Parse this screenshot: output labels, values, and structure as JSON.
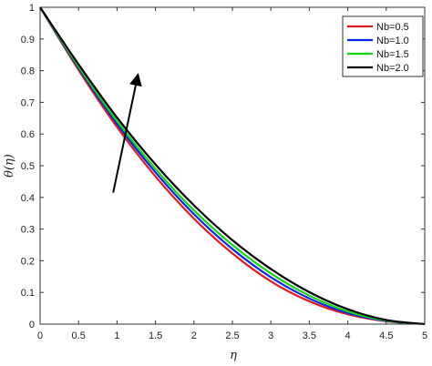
{
  "chart_data": {
    "type": "line",
    "xlabel": "η",
    "ylabel": "θ(η)",
    "xlim": [
      0,
      5
    ],
    "ylim": [
      0,
      1
    ],
    "x_ticks": [
      "0",
      "0.5",
      "1",
      "1.5",
      "2",
      "2.5",
      "3",
      "3.5",
      "4",
      "4.5",
      "5"
    ],
    "y_ticks": [
      "0",
      "0.1",
      "0.2",
      "0.3",
      "0.4",
      "0.5",
      "0.6",
      "0.7",
      "0.8",
      "0.9",
      "1"
    ],
    "grid": false,
    "legend_position": "top-right",
    "x": [
      0,
      0.5,
      1,
      1.5,
      2,
      2.5,
      3,
      3.5,
      4,
      4.5,
      5
    ],
    "series": [
      {
        "name": "Nb=0.5",
        "color": "#e41a1c",
        "values": [
          1.0,
          0.802,
          0.622,
          0.466,
          0.333,
          0.223,
          0.135,
          0.072,
          0.031,
          0.009,
          0.0
        ]
      },
      {
        "name": "Nb=1.0",
        "color": "#0a24e8",
        "values": [
          1.0,
          0.808,
          0.632,
          0.479,
          0.347,
          0.237,
          0.148,
          0.081,
          0.035,
          0.01,
          0.0
        ]
      },
      {
        "name": "Nb=1.5",
        "color": "#11d611",
        "values": [
          1.0,
          0.813,
          0.641,
          0.49,
          0.359,
          0.25,
          0.16,
          0.09,
          0.04,
          0.011,
          0.0
        ]
      },
      {
        "name": "Nb=2.0",
        "color": "#000000",
        "values": [
          1.0,
          0.82,
          0.652,
          0.504,
          0.375,
          0.265,
          0.174,
          0.101,
          0.047,
          0.013,
          0.0
        ]
      }
    ],
    "annotations": [
      {
        "type": "arrow",
        "from": [
          0.95,
          0.415
        ],
        "to": [
          1.27,
          0.785
        ],
        "meaning": "increasing Nb"
      }
    ]
  }
}
